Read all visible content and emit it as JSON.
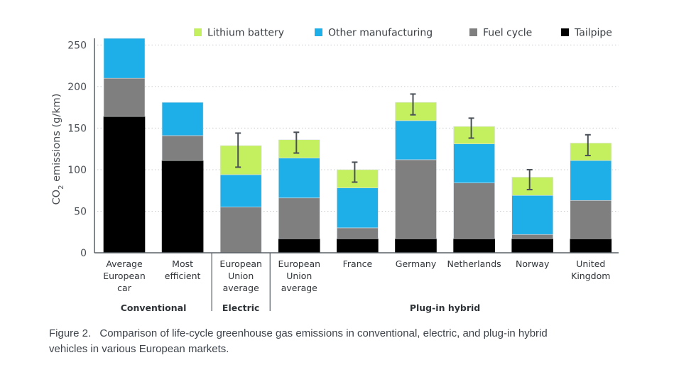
{
  "chart_data": {
    "type": "bar",
    "stacked": true,
    "title": "",
    "ylabel": "CO2 emissions (g/km)",
    "ylabel_main": "CO",
    "ylabel_sub": "2",
    "ylabel_rest": " emissions (g/km)",
    "xlabel": "",
    "ylim": [
      0,
      258
    ],
    "yticks": [
      0,
      50,
      100,
      150,
      200,
      250
    ],
    "grid": true,
    "legend_position": "top",
    "legend": [
      {
        "name": "Lithium battery",
        "color": "#c4ef5f"
      },
      {
        "name": "Other manufacturing",
        "color": "#1eaee8"
      },
      {
        "name": "Fuel cycle",
        "color": "#7f7f7f"
      },
      {
        "name": "Tailpipe",
        "color": "#000000"
      }
    ],
    "categories": [
      [
        "Average",
        "European",
        "car"
      ],
      [
        "Most",
        "efficient"
      ],
      [
        "European",
        "Union",
        "average"
      ],
      [
        "European",
        "Union",
        "average"
      ],
      [
        "France"
      ],
      [
        "Germany"
      ],
      [
        "Netherlands"
      ],
      [
        "Norway"
      ],
      [
        "United",
        "Kingdom"
      ]
    ],
    "groups": [
      {
        "label": "Conventional",
        "start": 0,
        "end": 1
      },
      {
        "label": "Electric",
        "start": 2,
        "end": 2
      },
      {
        "label": "Plug-in hybrid",
        "start": 3,
        "end": 8
      }
    ],
    "series": [
      {
        "name": "Tailpipe",
        "color": "#000000",
        "values": [
          164,
          111,
          0,
          17,
          17,
          17,
          17,
          17,
          17
        ]
      },
      {
        "name": "Fuel cycle",
        "color": "#7f7f7f",
        "values": [
          46,
          30,
          55,
          49,
          13,
          95,
          67,
          5,
          46
        ]
      },
      {
        "name": "Other manufacturing",
        "color": "#1eaee8",
        "values": [
          48,
          40,
          39,
          48,
          48,
          47,
          47,
          47,
          48
        ]
      },
      {
        "name": "Lithium battery",
        "color": "#c4ef5f",
        "values": [
          0,
          0,
          35,
          22,
          22,
          22,
          21,
          22,
          21
        ]
      }
    ],
    "error_bars": [
      null,
      null,
      {
        "low": 103,
        "high": 144
      },
      {
        "low": 120,
        "high": 145
      },
      {
        "low": 85,
        "high": 109
      },
      {
        "low": 166,
        "high": 191
      },
      {
        "low": 138,
        "high": 162
      },
      {
        "low": 76,
        "high": 100
      },
      {
        "low": 117,
        "high": 142
      }
    ]
  },
  "caption": {
    "figure_label": "Figure 2.",
    "text": "Comparison of life-cycle greenhouse gas emissions in conventional, electric, and plug-in hybrid vehicles in various European markets."
  }
}
